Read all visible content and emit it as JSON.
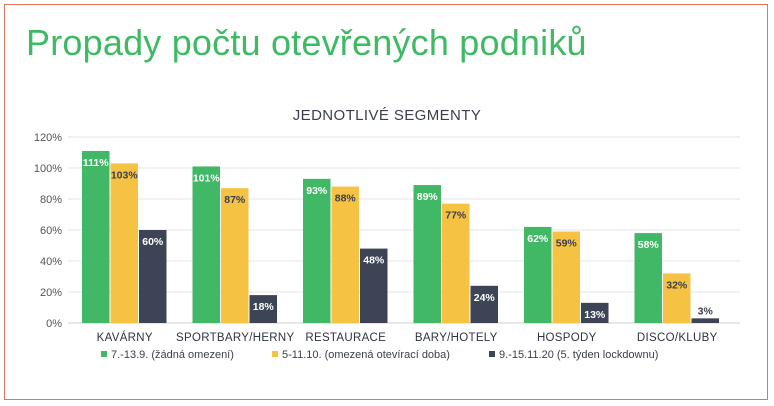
{
  "page": {
    "headline": "Propady počtu otevřených podniků"
  },
  "colors": {
    "headline": "#3dba63",
    "frame": "#e8735a"
  },
  "chart_data": {
    "type": "bar",
    "title": "JEDNOTLIVÉ SEGMENTY",
    "xlabel": "",
    "ylabel": "",
    "ylim": [
      0,
      120
    ],
    "yticks": [
      0,
      20,
      40,
      60,
      80,
      100,
      120
    ],
    "ytick_labels": [
      "0%",
      "20%",
      "40%",
      "60%",
      "80%",
      "100%",
      "120%"
    ],
    "grid": true,
    "legend_position": "bottom",
    "categories": [
      "KAVÁRNY",
      "SPORTBARY/HERNY",
      "RESTAURACE",
      "BARY/HOTELY",
      "HOSPODY",
      "DISCO/KLUBY"
    ],
    "series": [
      {
        "name": "7.-13.9. (žádná omezení)",
        "color": "#40b866",
        "label_color": "#ffffff",
        "values": [
          111,
          101,
          93,
          89,
          62,
          58
        ],
        "labels": [
          "111%",
          "101%",
          "93%",
          "89%",
          "62%",
          "58%"
        ]
      },
      {
        "name": "5-11.10. (omezená otevírací doba)",
        "color": "#f6c244",
        "label_color": "#3a3f4b",
        "values": [
          103,
          87,
          88,
          77,
          59,
          32
        ],
        "labels": [
          "103%",
          "87%",
          "88%",
          "77%",
          "59%",
          "32%"
        ]
      },
      {
        "name": "9.-15.11.20 (5. týden lockdownu)",
        "color": "#3d4455",
        "label_color": "#ffffff",
        "values": [
          60,
          18,
          48,
          24,
          13,
          3
        ],
        "labels": [
          "60%",
          "18%",
          "48%",
          "24%",
          "13%",
          "3%"
        ]
      }
    ]
  }
}
